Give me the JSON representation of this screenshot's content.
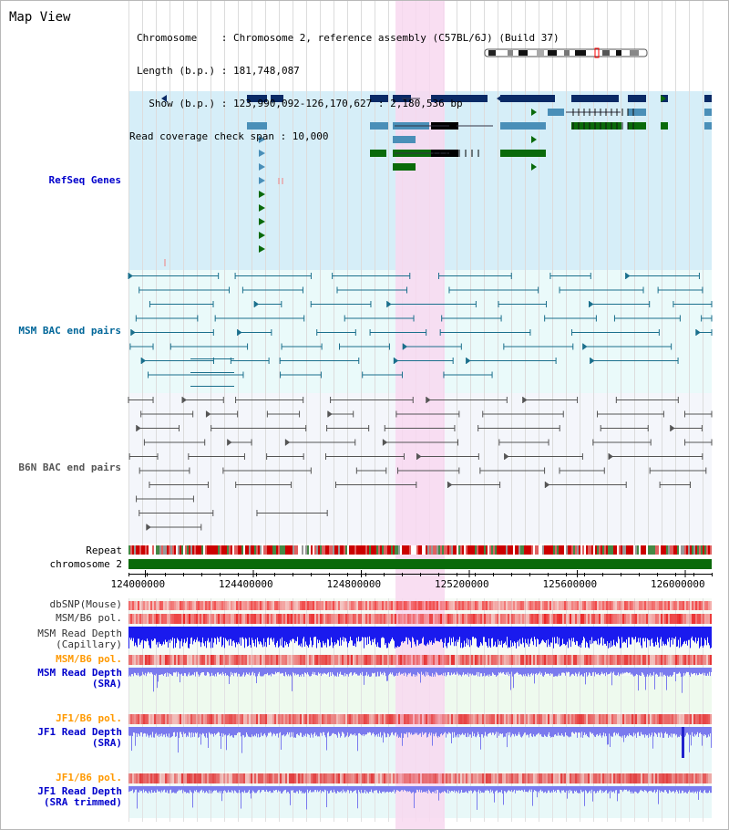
{
  "app": {
    "title": "Map View"
  },
  "info": {
    "chromosome_line": "Chromosome    : Chromosome 2, reference assembly (C57BL/6J) (Build 37)",
    "length_line": "Length (b.p.) : 181,748,087",
    "show_line": "  Show (b.p.) : 123,990,092-126,170,627 : 2,180,536 bp",
    "coverage_line": "Read coverage check span : 10,000"
  },
  "tracks": {
    "refseq": {
      "label": "RefSeq Genes",
      "color": "#0000cc"
    },
    "msm_bac": {
      "label": "MSM BAC end pairs",
      "color": "#006699"
    },
    "b6n_bac": {
      "label": "B6N BAC end pairs",
      "color": "#555555"
    },
    "repeat": {
      "label": "Repeat"
    },
    "chromosome": {
      "label": "chromosome 2"
    },
    "dbsnp": {
      "label": "dbSNP(Mouse)"
    },
    "msm_b6_pol_1": {
      "label": "MSM/B6 pol."
    },
    "msm_read_depth_cap": {
      "label": "MSM Read Depth",
      "label2": "(Capillary)"
    },
    "msm_b6_pol_2": {
      "label": "MSM/B6 pol.",
      "color": "#ff9900"
    },
    "msm_read_depth_sra": {
      "label": "MSM Read Depth",
      "label2": "(SRA)",
      "color": "#0000cc"
    },
    "jf1_b6_pol_1": {
      "label": "JF1/B6 pol.",
      "color": "#ff9900"
    },
    "jf1_read_depth_sra": {
      "label": "JF1 Read Depth",
      "label2": "(SRA)",
      "color": "#0000cc"
    },
    "jf1_b6_pol_2": {
      "label": "JF1/B6 pol.",
      "color": "#ff9900"
    },
    "jf1_read_depth_trimmed": {
      "label": "JF1 Read Depth",
      "label2": "(SRA trimmed)",
      "color": "#0000cc"
    }
  },
  "axis": {
    "ticks": [
      "124000000",
      "124400000",
      "124800000",
      "125200000",
      "125600000",
      "126000000"
    ]
  },
  "colors": {
    "refseq_bg": "#d6eef8",
    "bac_bg": "#eafafa",
    "b6n_bg": "#f4f6fb",
    "highlight": "#f8d8f0",
    "gene_dark": "#0a2a66",
    "gene_light": "#4a8fb8",
    "gene_green": "#0a6a0a",
    "depth_blue": "#1a1aee",
    "depth_light": "#7a7aee",
    "chrom_green": "#0a6a0a"
  }
}
